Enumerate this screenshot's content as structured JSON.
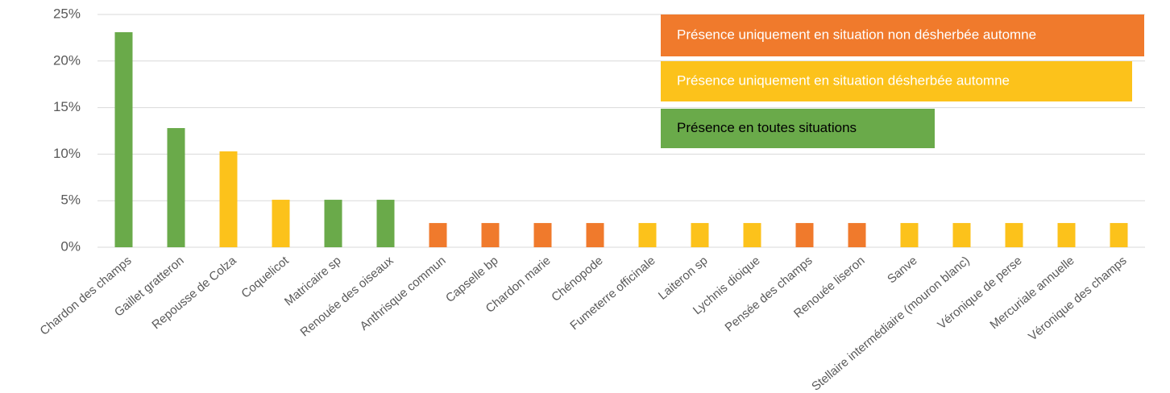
{
  "chart_data": {
    "type": "bar",
    "categories": [
      "Chardon des champs",
      "Gaillet gratteron",
      "Repousse de Colza",
      "Coquelicot",
      "Matricaire sp",
      "Renouée des oiseaux",
      "Anthrisque commun",
      "Capselle bp",
      "Chardon marie",
      "Chénopode",
      "Fumeterre officinale",
      "Laiteron sp",
      "Lychnis dioique",
      "Pensée des champs",
      "Renouée liseron",
      "Sanve",
      "Stellaire intermédiaire (mouron blanc)",
      "Véronique de perse",
      "Mercuriale annuelle",
      "Véronique des champs"
    ],
    "values": [
      23.1,
      12.8,
      10.3,
      5.1,
      5.1,
      5.1,
      2.6,
      2.6,
      2.6,
      2.6,
      2.6,
      2.6,
      2.6,
      2.6,
      2.6,
      2.6,
      2.6,
      2.6,
      2.6,
      2.6
    ],
    "colors": [
      "#6aaa4a",
      "#6aaa4a",
      "#fcc21b",
      "#fcc21b",
      "#6aaa4a",
      "#6aaa4a",
      "#f07a2c",
      "#f07a2c",
      "#f07a2c",
      "#f07a2c",
      "#fcc21b",
      "#fcc21b",
      "#fcc21b",
      "#f07a2c",
      "#f07a2c",
      "#fcc21b",
      "#fcc21b",
      "#fcc21b",
      "#fcc21b",
      "#fcc21b"
    ],
    "legend": [
      {
        "label": "Présence uniquement en situation non désherbée automne",
        "color": "#f07a2c"
      },
      {
        "label": "Présence uniquement en situation désherbée automne",
        "color": "#fcc21b"
      },
      {
        "label": "Présence en toutes situations",
        "color": "#6aaa4a"
      }
    ],
    "ylim": [
      0,
      25
    ],
    "yticks": [
      {
        "value": 0,
        "label": "0%"
      },
      {
        "value": 5,
        "label": "5%"
      },
      {
        "value": 10,
        "label": "10%"
      },
      {
        "value": 15,
        "label": "15%"
      },
      {
        "value": 20,
        "label": "20%"
      },
      {
        "value": 25,
        "label": "25%"
      }
    ],
    "grid": true
  }
}
